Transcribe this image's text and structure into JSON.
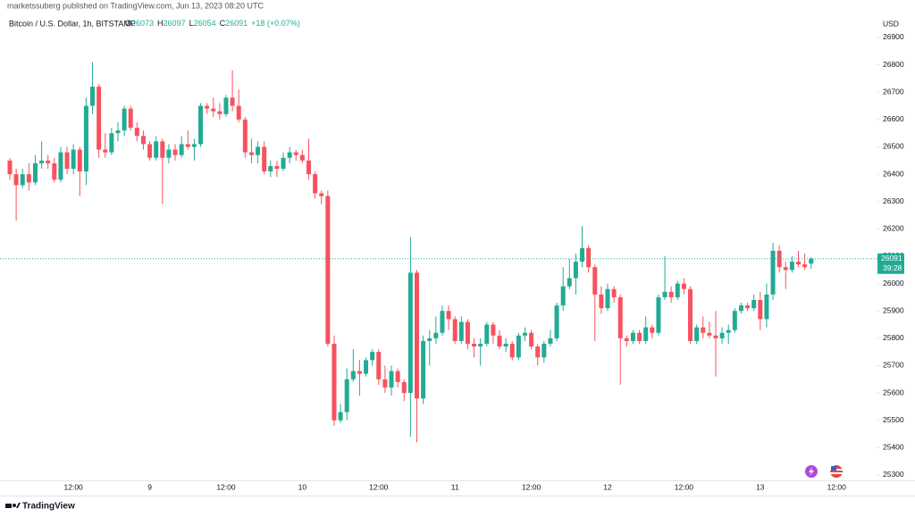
{
  "header": {
    "publisher": "marketssuberg published on TradingView.com, Jun 13, 2023 08:20 UTC"
  },
  "footer": {
    "brand": "TradingView"
  },
  "chart_data": {
    "type": "candlestick",
    "title": "Bitcoin / U.S. Dollar, 1h, BITSTAMP",
    "ohlc_legend": [
      {
        "label": "O",
        "value": "26073"
      },
      {
        "label": "H",
        "value": "26097"
      },
      {
        "label": "L",
        "value": "26054"
      },
      {
        "label": "C",
        "value": "26091"
      }
    ],
    "change": "+18 (+0.07%)",
    "countdown": "39:28",
    "y_label": "USD",
    "up_color": "#22ab94",
    "down_color": "#f7525f",
    "categories": [
      null,
      null,
      null,
      null,
      null,
      null,
      null,
      null,
      null,
      null,
      "12:00",
      null,
      null,
      null,
      null,
      null,
      null,
      null,
      null,
      null,
      null,
      null,
      "9",
      null,
      null,
      null,
      null,
      null,
      null,
      null,
      null,
      null,
      null,
      null,
      "12:00",
      null,
      null,
      null,
      null,
      null,
      null,
      null,
      null,
      null,
      null,
      null,
      "10",
      null,
      null,
      null,
      null,
      null,
      null,
      null,
      null,
      null,
      null,
      null,
      "12:00",
      null,
      null,
      null,
      null,
      null,
      null,
      null,
      null,
      null,
      null,
      null,
      "11",
      null,
      null,
      null,
      null,
      null,
      null,
      null,
      null,
      null,
      null,
      null,
      "12:00",
      null,
      null,
      null,
      null,
      null,
      null,
      null,
      null,
      null,
      null,
      null,
      "12",
      null,
      null,
      null,
      null,
      null,
      null,
      null,
      null,
      null,
      null,
      null,
      "12:00",
      null,
      null,
      null,
      null,
      null,
      null,
      null,
      null,
      null,
      null,
      null,
      "13",
      null,
      null,
      null,
      null,
      null,
      null,
      null,
      null,
      null,
      null,
      null,
      "12:00"
    ],
    "open": [
      26450,
      26400,
      26360,
      26400,
      26370,
      26440,
      26450,
      26440,
      26380,
      26480,
      26420,
      26490,
      26410,
      26650,
      26720,
      26490,
      26480,
      26550,
      26560,
      26640,
      26570,
      26540,
      26510,
      26460,
      26520,
      26460,
      26490,
      26470,
      26510,
      26500,
      26510,
      26650,
      26640,
      26630,
      26620,
      26680,
      26650,
      26600,
      26480,
      26470,
      26500,
      26410,
      26430,
      26420,
      26460,
      26480,
      26470,
      26450,
      26400,
      26330,
      26320,
      25780,
      25500,
      25530,
      25650,
      25680,
      25670,
      25720,
      25750,
      25650,
      25620,
      25680,
      25640,
      25600,
      26040,
      25580,
      25790,
      25800,
      25820,
      25900,
      25870,
      25790,
      25860,
      25780,
      25770,
      25780,
      25850,
      25810,
      25770,
      25780,
      25730,
      25810,
      25820,
      25770,
      25730,
      25780,
      25800,
      25920,
      25990,
      26020,
      26080,
      26130,
      26060,
      25960,
      25910,
      25980,
      25950,
      25800,
      25790,
      25820,
      25790,
      25840,
      25820,
      25950,
      25970,
      25950,
      26000,
      25980,
      25790,
      25840,
      25820,
      25810,
      25800,
      25820,
      25830,
      25900,
      25920,
      25910,
      25940,
      25870,
      25960,
      26120,
      26060,
      26050,
      26080,
      26070,
      26073,
      null,
      null,
      null,
      null
    ],
    "high": [
      26460,
      26420,
      26420,
      26440,
      26470,
      26520,
      26470,
      26460,
      26500,
      26500,
      26510,
      26500,
      26680,
      26810,
      26730,
      26550,
      26570,
      26590,
      26650,
      26650,
      26590,
      26560,
      26520,
      26540,
      26530,
      26510,
      26510,
      26540,
      26560,
      26530,
      26660,
      26660,
      26680,
      26660,
      26690,
      26780,
      26710,
      26610,
      26530,
      26520,
      26520,
      26450,
      26450,
      26480,
      26500,
      26490,
      26490,
      26530,
      26410,
      26340,
      26340,
      25810,
      25560,
      25690,
      25760,
      25720,
      25730,
      25760,
      25760,
      25700,
      25700,
      25690,
      25650,
      26170,
      26050,
      25810,
      25830,
      25880,
      25920,
      25920,
      25880,
      25880,
      25870,
      25800,
      25800,
      25860,
      25860,
      25830,
      25800,
      25790,
      25820,
      25840,
      25830,
      25780,
      25790,
      25830,
      25930,
      26060,
      26090,
      26110,
      26210,
      26140,
      26070,
      25990,
      26000,
      25990,
      25960,
      25810,
      25830,
      25830,
      25880,
      25850,
      25960,
      26100,
      25990,
      26010,
      26020,
      25990,
      25850,
      25880,
      25860,
      25900,
      25840,
      25850,
      25910,
      25930,
      25930,
      25960,
      25970,
      26000,
      26150,
      26140,
      26080,
      26100,
      26120,
      26110,
      26097,
      null,
      null,
      null,
      null
    ],
    "low": [
      26380,
      26230,
      26350,
      26340,
      26360,
      26420,
      26420,
      26370,
      26370,
      26400,
      26400,
      26320,
      26360,
      26620,
      26460,
      26460,
      26470,
      26520,
      26540,
      26560,
      26520,
      26490,
      26450,
      26450,
      26290,
      26440,
      26450,
      26460,
      26490,
      26450,
      26500,
      26620,
      26610,
      26600,
      26610,
      26630,
      26590,
      26460,
      26440,
      26440,
      26400,
      26390,
      26390,
      26410,
      26440,
      26450,
      26440,
      26380,
      26310,
      26290,
      25770,
      25480,
      25490,
      25500,
      25640,
      25590,
      25660,
      25700,
      25630,
      25600,
      25590,
      25620,
      25570,
      25440,
      25420,
      25560,
      25700,
      25780,
      25810,
      25830,
      25780,
      25780,
      25760,
      25730,
      25700,
      25770,
      25780,
      25760,
      25750,
      25720,
      25720,
      25790,
      25760,
      25700,
      25710,
      25770,
      25790,
      25900,
      25980,
      25960,
      26060,
      26040,
      25790,
      25890,
      25900,
      25930,
      25630,
      25770,
      25780,
      25780,
      25780,
      25800,
      25810,
      25940,
      25930,
      25940,
      25960,
      25780,
      25780,
      25800,
      25800,
      25660,
      25780,
      25780,
      25820,
      25890,
      25900,
      25900,
      25830,
      25840,
      25940,
      26040,
      25980,
      26040,
      26060,
      26050,
      26054,
      null,
      null,
      null,
      null
    ],
    "close": [
      26400,
      26360,
      26400,
      26370,
      26440,
      26450,
      26440,
      26380,
      26480,
      26420,
      26490,
      26410,
      26650,
      26720,
      26490,
      26480,
      26550,
      26560,
      26640,
      26570,
      26540,
      26510,
      26460,
      26520,
      26460,
      26490,
      26470,
      26510,
      26500,
      26510,
      26650,
      26640,
      26630,
      26620,
      26680,
      26650,
      26600,
      26480,
      26470,
      26500,
      26410,
      26430,
      26420,
      26460,
      26480,
      26470,
      26450,
      26400,
      26330,
      26320,
      25780,
      25500,
      25530,
      25650,
      25680,
      25670,
      25720,
      25750,
      25650,
      25620,
      25680,
      25640,
      25600,
      26040,
      25580,
      25790,
      25800,
      25820,
      25900,
      25870,
      25790,
      25860,
      25780,
      25770,
      25780,
      25850,
      25810,
      25770,
      25780,
      25730,
      25810,
      25820,
      25770,
      25730,
      25780,
      25800,
      25920,
      25990,
      26020,
      26080,
      26130,
      26060,
      25960,
      25910,
      25980,
      25950,
      25800,
      25790,
      25820,
      25790,
      25840,
      25820,
      25950,
      25970,
      25950,
      26000,
      25980,
      25790,
      25840,
      25820,
      25810,
      25800,
      25820,
      25830,
      25900,
      25920,
      25910,
      25940,
      25870,
      25960,
      26120,
      26060,
      26050,
      26080,
      26070,
      26060,
      26091,
      null,
      null,
      null,
      null
    ],
    "ylim": [
      25280,
      27010
    ],
    "yticks": [
      25300,
      25400,
      25500,
      25600,
      25700,
      25800,
      25900,
      26000,
      26100,
      26200,
      26300,
      26400,
      26500,
      26600,
      26700,
      26800,
      26900
    ]
  }
}
